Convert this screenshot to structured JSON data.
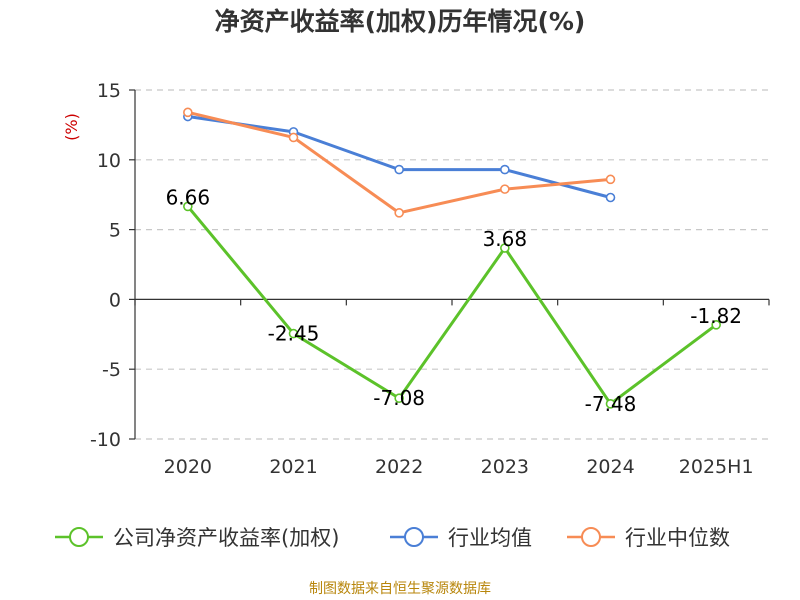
{
  "chart_data": {
    "type": "line",
    "title": "净资产收益率(加权)历年情况(%)",
    "ylabel": "(%)",
    "xlabel": "",
    "categories": [
      "2020",
      "2021",
      "2022",
      "2023",
      "2024",
      "2025H1"
    ],
    "y_ticks": [
      "15",
      "10",
      "5",
      "0",
      "-5",
      "-10"
    ],
    "ylim": [
      -10,
      15
    ],
    "grid": true,
    "legend_position": "bottom",
    "series": [
      {
        "name": "公司净资产收益率(加权)",
        "color": "#5cc22a",
        "values": [
          6.66,
          -2.45,
          -7.08,
          3.68,
          -7.48,
          -1.82
        ],
        "labels": [
          "6.66",
          "-2.45",
          "-7.08",
          "3.68",
          "-7.48",
          "-1.82"
        ]
      },
      {
        "name": "行业均值",
        "color": "#4a7fd6",
        "values": [
          13.1,
          12.0,
          9.3,
          9.3,
          7.3,
          null
        ]
      },
      {
        "name": "行业中位数",
        "color": "#f78c55",
        "values": [
          13.4,
          11.6,
          6.2,
          7.9,
          8.6,
          null
        ]
      }
    ]
  },
  "source_note": "制图数据来自恒生聚源数据库"
}
